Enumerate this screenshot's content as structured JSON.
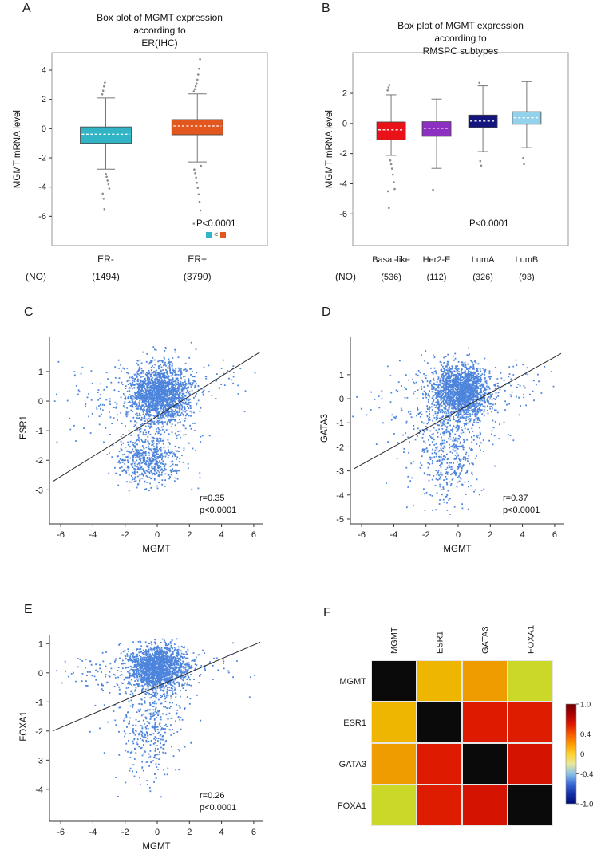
{
  "figure": {
    "background": "#ffffff",
    "point_color": "#2e6fd6",
    "axis_color": "#333333",
    "outlier_color": "#8a8a8a"
  },
  "chart_data": [
    {
      "panel": "A",
      "type": "box",
      "title_lines": [
        "Box plot of MGMT expression",
        "according to",
        "ER(IHC)"
      ],
      "ylabel": "MGMT mRNA level",
      "ylim": [
        -8.0,
        5.2
      ],
      "yticks": [
        4,
        2,
        0,
        -2,
        -4,
        -6
      ],
      "annotation": "P<0.0001",
      "legend": {
        "left_color": "#31b4c6",
        "symbol": "<",
        "right_color": "#e2571e"
      },
      "count_row_label": "(NO)",
      "groups": [
        {
          "label": "ER-",
          "count": "(1494)",
          "color": "#31b4c6",
          "q1": -1.0,
          "median": -0.38,
          "q3": 0.12,
          "whisker_low": -2.78,
          "whisker_high": 2.1,
          "outliers": [
            2.35,
            2.6,
            2.9,
            3.15,
            -3.1,
            -3.3,
            -3.55,
            -3.8,
            -4.1,
            -4.45,
            -4.8,
            -5.5
          ]
        },
        {
          "label": "ER+",
          "count": "(3790)",
          "color": "#e2571e",
          "q1": -0.42,
          "median": 0.18,
          "q3": 0.62,
          "whisker_low": -2.28,
          "whisker_high": 2.38,
          "outliers": [
            2.55,
            2.7,
            2.9,
            3.1,
            3.35,
            3.7,
            4.1,
            4.75,
            -2.55,
            -2.8,
            -3.05,
            -3.35,
            -3.7,
            -4.05,
            -4.5,
            -5.0,
            -5.6,
            -6.5
          ]
        }
      ]
    },
    {
      "panel": "B",
      "type": "box",
      "title_lines": [
        "Box plot of MGMT expression",
        "according to",
        "RMSPC subtypes"
      ],
      "ylabel": "MGMT mRNA level",
      "ylim": [
        -8.1,
        4.7
      ],
      "yticks": [
        2,
        0,
        -2,
        -4,
        -6
      ],
      "annotation": "P<0.0001",
      "count_row_label": "(NO)",
      "groups": [
        {
          "label": "Basal-like",
          "count": "(536)",
          "color": "#ea1218",
          "q1": -1.08,
          "median": -0.42,
          "q3": 0.1,
          "whisker_low": -2.12,
          "whisker_high": 1.9,
          "outliers": [
            2.2,
            2.4,
            2.55,
            -2.45,
            -2.7,
            -3.0,
            -3.4,
            -3.9,
            -4.35,
            -4.5,
            -5.6
          ]
        },
        {
          "label": "Her2-E",
          "count": "(112)",
          "color": "#8d2fc0",
          "q1": -0.85,
          "median": -0.32,
          "q3": 0.12,
          "whisker_low": -2.98,
          "whisker_high": 1.62,
          "outliers": [
            -4.4
          ]
        },
        {
          "label": "LumA",
          "count": "(326)",
          "color": "#14147e",
          "q1": -0.26,
          "median": 0.16,
          "q3": 0.56,
          "whisker_low": -1.86,
          "whisker_high": 2.5,
          "outliers": [
            2.7,
            -2.5,
            -2.8
          ]
        },
        {
          "label": "LumB",
          "count": "(93)",
          "color": "#93d2ea",
          "q1": -0.05,
          "median": 0.38,
          "q3": 0.78,
          "whisker_low": -1.6,
          "whisker_high": 2.78,
          "outliers": [
            -2.3,
            -2.7
          ]
        }
      ]
    },
    {
      "panel": "C",
      "type": "scatter",
      "xlabel": "MGMT",
      "ylabel": "ESR1",
      "xlim": [
        -6.7,
        6.6
      ],
      "ylim": [
        -4.15,
        2.05
      ],
      "xticks": [
        -6,
        -4,
        -2,
        0,
        2,
        4,
        6
      ],
      "yticks": [
        1,
        0,
        -1,
        -2,
        -3
      ],
      "r_label": "r=0.35",
      "p_label": "p<0.0001",
      "regression": {
        "x1": -6.5,
        "y1": -2.72,
        "x2": 6.4,
        "y2": 1.66
      },
      "clusters": [
        {
          "n": 1900,
          "cx": 0.15,
          "cy": 0.25,
          "sx": 0.95,
          "sy": 0.5
        },
        {
          "n": 520,
          "cx": -0.55,
          "cy": -2.0,
          "sx": 0.95,
          "sy": 0.42
        },
        {
          "n": 150,
          "cx": -0.8,
          "cy": -0.7,
          "sx": 2.0,
          "sy": 0.9
        },
        {
          "n": 60,
          "cx": -3.5,
          "cy": 0.1,
          "sx": 1.5,
          "sy": 0.6
        },
        {
          "n": 35,
          "cx": 4.2,
          "cy": 0.7,
          "sx": 1.0,
          "sy": 0.45
        }
      ]
    },
    {
      "panel": "D",
      "type": "scatter",
      "xlabel": "MGMT",
      "ylabel": "GATA3",
      "xlim": [
        -6.7,
        6.6
      ],
      "ylim": [
        -5.2,
        2.42
      ],
      "xticks": [
        -6,
        -4,
        -2,
        0,
        2,
        4,
        6
      ],
      "yticks": [
        1,
        0,
        -1,
        -2,
        -3,
        -4,
        -5
      ],
      "r_label": "r=0.37",
      "p_label": "p<0.0001",
      "regression": {
        "x1": -6.5,
        "y1": -2.92,
        "x2": 6.4,
        "y2": 1.88
      },
      "clusters": [
        {
          "n": 1900,
          "cx": 0.2,
          "cy": 0.3,
          "sx": 0.95,
          "sy": 0.55
        },
        {
          "n": 420,
          "cx": -0.6,
          "cy": -2.3,
          "sx": 1.0,
          "sy": 1.0
        },
        {
          "n": 150,
          "cx": -0.7,
          "cy": -0.8,
          "sx": 2.0,
          "sy": 1.0
        },
        {
          "n": 50,
          "cx": -3.6,
          "cy": -0.2,
          "sx": 1.4,
          "sy": 0.8
        },
        {
          "n": 35,
          "cx": 4.2,
          "cy": 0.8,
          "sx": 1.0,
          "sy": 0.5
        }
      ]
    },
    {
      "panel": "E",
      "type": "scatter",
      "xlabel": "MGMT",
      "ylabel": "FOXA1",
      "xlim": [
        -6.7,
        6.6
      ],
      "ylim": [
        -5.1,
        1.2
      ],
      "xticks": [
        -6,
        -4,
        -2,
        0,
        2,
        4,
        6
      ],
      "yticks": [
        1,
        0,
        -1,
        -2,
        -3,
        -4
      ],
      "r_label": "r=0.26",
      "p_label": "p<0.0001",
      "regression": {
        "x1": -6.5,
        "y1": -2.0,
        "x2": 6.4,
        "y2": 1.05
      },
      "clusters": [
        {
          "n": 1800,
          "cx": 0.05,
          "cy": 0.18,
          "sx": 0.9,
          "sy": 0.38
        },
        {
          "n": 330,
          "cx": -0.5,
          "cy": -2.1,
          "sx": 0.85,
          "sy": 0.85
        },
        {
          "n": 130,
          "cx": -0.8,
          "cy": -0.6,
          "sx": 1.9,
          "sy": 0.7
        },
        {
          "n": 60,
          "cx": -3.4,
          "cy": 0.0,
          "sx": 1.5,
          "sy": 0.35
        },
        {
          "n": 30,
          "cx": 3.8,
          "cy": 0.45,
          "sx": 1.1,
          "sy": 0.35
        }
      ]
    },
    {
      "panel": "F",
      "type": "heatmap",
      "labels": [
        "MGMT",
        "ESR1",
        "GATA3",
        "FOXA1"
      ],
      "values": [
        [
          1.0,
          0.35,
          0.37,
          0.26
        ],
        [
          0.35,
          1.0,
          0.85,
          0.8
        ],
        [
          0.37,
          0.85,
          1.0,
          0.84
        ],
        [
          0.26,
          0.8,
          0.84,
          1.0
        ]
      ],
      "cell_colors": [
        [
          "#0a0a0a",
          "#eeb600",
          "#ef9c00",
          "#ccd827"
        ],
        [
          "#eeb600",
          "#0a0a0a",
          "#de1a00",
          "#de1c00"
        ],
        [
          "#ef9c00",
          "#de1a00",
          "#0a0a0a",
          "#d41400"
        ],
        [
          "#ccd827",
          "#de1c00",
          "#d41400",
          "#0a0a0a"
        ]
      ],
      "colorbar": {
        "ticks": [
          "1.0",
          "0.4",
          "0",
          "-0.4",
          "-1.0"
        ],
        "stops": [
          "#6e0000",
          "#a80000",
          "#dc1600",
          "#f65800",
          "#fe9a00",
          "#ffd22e",
          "#e8e89a",
          "#8cc2e8",
          "#3a6cd8",
          "#1430a8",
          "#000d70"
        ]
      }
    }
  ]
}
